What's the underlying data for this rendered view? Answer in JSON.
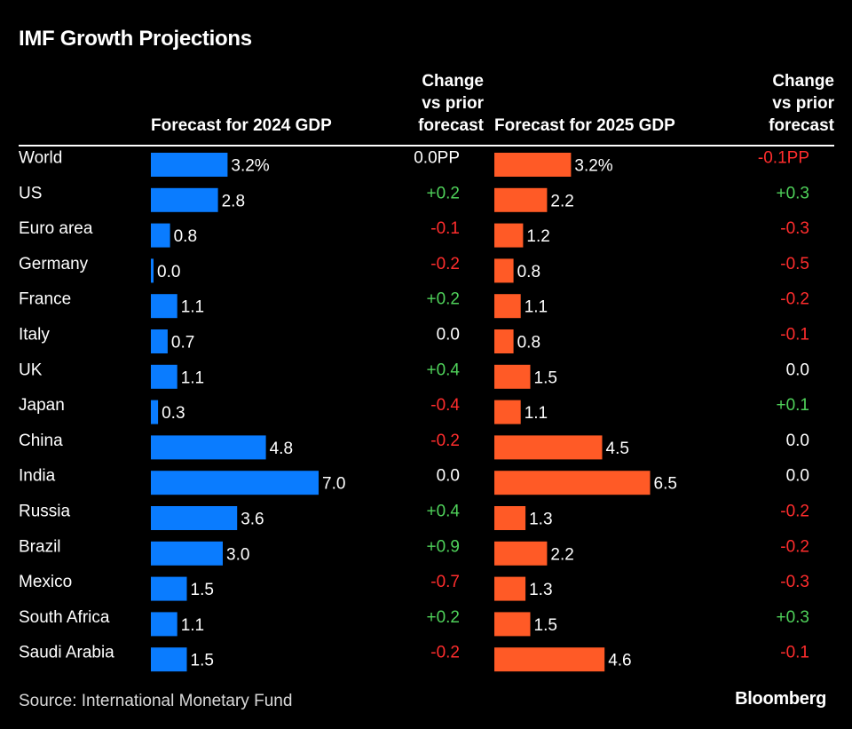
{
  "chart_data": {
    "type": "bar",
    "title": "IMF Growth Projections",
    "columns": {
      "forecast_2024": "Forecast for 2024 GDP",
      "change_2024": [
        "Change",
        "vs prior",
        "forecast"
      ],
      "forecast_2025": "Forecast for 2025 GDP",
      "change_2025": [
        "Change",
        "vs prior",
        "forecast"
      ]
    },
    "categories": [
      "World",
      "US",
      "Euro area",
      "Germany",
      "France",
      "Italy",
      "UK",
      "Japan",
      "China",
      "India",
      "Russia",
      "Brazil",
      "Mexico",
      "South Africa",
      "Saudi Arabia"
    ],
    "series": [
      {
        "name": "Forecast for 2024 GDP",
        "values": [
          3.2,
          2.8,
          0.8,
          0.0,
          1.1,
          0.7,
          1.1,
          0.3,
          4.8,
          7.0,
          3.6,
          3.0,
          1.5,
          1.1,
          1.5
        ],
        "labels": [
          "3.2%",
          "2.8",
          "0.8",
          "0.0",
          "1.1",
          "0.7",
          "1.1",
          "0.3",
          "4.8",
          "7.0",
          "3.6",
          "3.0",
          "1.5",
          "1.1",
          "1.5"
        ],
        "color": "#0a7cff"
      },
      {
        "name": "Forecast for 2025 GDP",
        "values": [
          3.2,
          2.2,
          1.2,
          0.8,
          1.1,
          0.8,
          1.5,
          1.1,
          4.5,
          6.5,
          1.3,
          2.2,
          1.3,
          1.5,
          4.6
        ],
        "labels": [
          "3.2%",
          "2.2",
          "1.2",
          "0.8",
          "1.1",
          "0.8",
          "1.5",
          "1.1",
          "4.5",
          "6.5",
          "1.3",
          "2.2",
          "1.3",
          "1.5",
          "4.6"
        ],
        "color": "#ff5a26"
      }
    ],
    "changes_2024": [
      "0.0PP",
      "+0.2",
      "-0.1",
      "-0.2",
      "+0.2",
      "0.0",
      "+0.4",
      "-0.4",
      "-0.2",
      "0.0",
      "+0.4",
      "+0.9",
      "-0.7",
      "+0.2",
      "-0.2"
    ],
    "changes_2025": [
      "-0.1PP",
      "+0.3",
      "-0.3",
      "-0.5",
      "-0.2",
      "-0.1",
      "0.0",
      "+0.1",
      "0.0",
      "0.0",
      "-0.2",
      "-0.2",
      "-0.3",
      "+0.3",
      "-0.1"
    ],
    "colors": {
      "positive": "#4fd15a",
      "negative": "#ff2d2d",
      "neutral": "#ffffff"
    }
  },
  "source": "Source: International Monetary Fund",
  "brand": "Bloomberg"
}
